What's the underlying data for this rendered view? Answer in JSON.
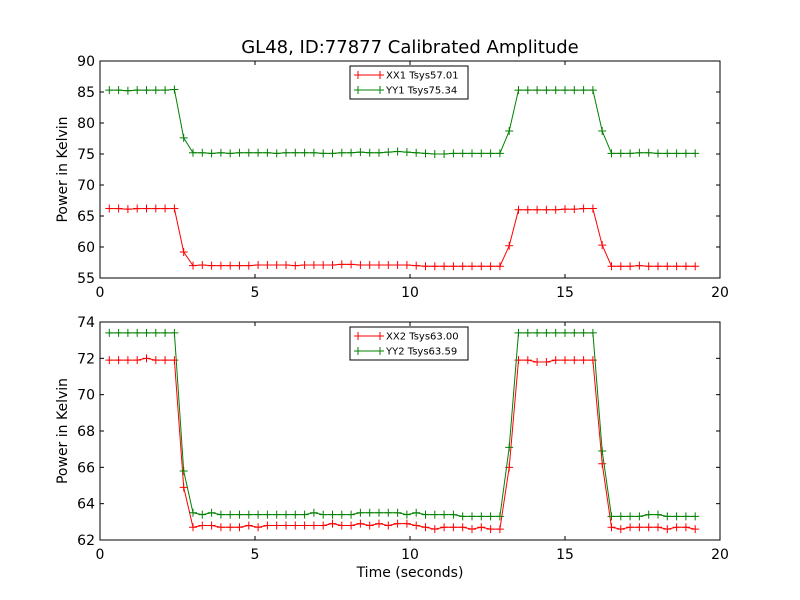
{
  "figure_title": "GL48, ID:77877 Calibrated Amplitude",
  "chart_data": [
    {
      "type": "line",
      "title": "GL48, ID:77877 Calibrated Amplitude",
      "xlabel": "",
      "ylabel": "Power in Kelvin",
      "xlim": [
        0,
        20
      ],
      "ylim": [
        55,
        90
      ],
      "xticks": [
        "0",
        "5",
        "10",
        "15",
        "20"
      ],
      "yticks": [
        "55",
        "60",
        "65",
        "70",
        "75",
        "80",
        "85",
        "90"
      ],
      "grid": false,
      "legend_position": "top-center",
      "x": [
        0.3,
        0.6,
        0.9,
        1.2,
        1.5,
        1.8,
        2.1,
        2.4,
        2.7,
        3.0,
        3.3,
        3.6,
        3.9,
        4.2,
        4.5,
        4.8,
        5.1,
        5.4,
        5.7,
        6.0,
        6.3,
        6.6,
        6.9,
        7.2,
        7.5,
        7.8,
        8.1,
        8.4,
        8.7,
        9.0,
        9.3,
        9.6,
        9.9,
        10.2,
        10.5,
        10.8,
        11.1,
        11.4,
        11.7,
        12.0,
        12.3,
        12.6,
        12.9,
        13.2,
        13.5,
        13.8,
        14.1,
        14.4,
        14.7,
        15.0,
        15.3,
        15.6,
        15.9,
        16.2,
        16.5,
        16.8,
        17.1,
        17.4,
        17.7,
        18.0,
        18.3,
        18.6,
        18.9,
        19.2
      ],
      "series": [
        {
          "name": "XX1 Tsys57.01",
          "color": "#ff0000",
          "values": [
            66.2,
            66.2,
            66.1,
            66.2,
            66.2,
            66.2,
            66.2,
            66.2,
            59.2,
            57.0,
            57.1,
            57.0,
            57.0,
            57.0,
            57.0,
            57.0,
            57.1,
            57.1,
            57.1,
            57.1,
            57.0,
            57.1,
            57.1,
            57.1,
            57.1,
            57.2,
            57.2,
            57.1,
            57.1,
            57.1,
            57.1,
            57.1,
            57.1,
            57.0,
            56.9,
            56.9,
            56.9,
            56.9,
            56.9,
            56.9,
            56.9,
            56.9,
            56.9,
            60.2,
            66.0,
            66.0,
            66.0,
            66.0,
            66.0,
            66.1,
            66.1,
            66.2,
            66.2,
            60.3,
            56.9,
            56.9,
            56.9,
            57.0,
            56.9,
            56.9,
            56.9,
            56.9,
            56.9,
            56.9
          ]
        },
        {
          "name": "YY1 Tsys75.34",
          "color": "#008000",
          "values": [
            85.3,
            85.3,
            85.2,
            85.3,
            85.3,
            85.3,
            85.3,
            85.4,
            77.6,
            75.2,
            75.2,
            75.1,
            75.2,
            75.1,
            75.2,
            75.2,
            75.2,
            75.2,
            75.1,
            75.2,
            75.2,
            75.2,
            75.2,
            75.1,
            75.1,
            75.2,
            75.2,
            75.3,
            75.2,
            75.2,
            75.3,
            75.4,
            75.3,
            75.2,
            75.1,
            75.0,
            75.0,
            75.1,
            75.1,
            75.1,
            75.1,
            75.1,
            75.1,
            78.7,
            85.3,
            85.3,
            85.3,
            85.3,
            85.3,
            85.3,
            85.3,
            85.3,
            85.3,
            78.7,
            75.1,
            75.1,
            75.1,
            75.2,
            75.2,
            75.1,
            75.1,
            75.1,
            75.1,
            75.1
          ]
        }
      ]
    },
    {
      "type": "line",
      "title": "",
      "xlabel": "Time (seconds)",
      "ylabel": "Power in Kelvin",
      "xlim": [
        0,
        20
      ],
      "ylim": [
        62,
        74
      ],
      "xticks": [
        "0",
        "5",
        "10",
        "15",
        "20"
      ],
      "yticks": [
        "62",
        "64",
        "66",
        "68",
        "70",
        "72",
        "74"
      ],
      "grid": false,
      "legend_position": "top-center",
      "x": [
        0.3,
        0.6,
        0.9,
        1.2,
        1.5,
        1.8,
        2.1,
        2.4,
        2.7,
        3.0,
        3.3,
        3.6,
        3.9,
        4.2,
        4.5,
        4.8,
        5.1,
        5.4,
        5.7,
        6.0,
        6.3,
        6.6,
        6.9,
        7.2,
        7.5,
        7.8,
        8.1,
        8.4,
        8.7,
        9.0,
        9.3,
        9.6,
        9.9,
        10.2,
        10.5,
        10.8,
        11.1,
        11.4,
        11.7,
        12.0,
        12.3,
        12.6,
        12.9,
        13.2,
        13.5,
        13.8,
        14.1,
        14.4,
        14.7,
        15.0,
        15.3,
        15.6,
        15.9,
        16.2,
        16.5,
        16.8,
        17.1,
        17.4,
        17.7,
        18.0,
        18.3,
        18.6,
        18.9,
        19.2
      ],
      "series": [
        {
          "name": "XX2 Tsys63.00",
          "color": "#ff0000",
          "values": [
            71.9,
            71.9,
            71.9,
            71.9,
            72.0,
            71.9,
            71.9,
            71.9,
            64.9,
            62.7,
            62.8,
            62.8,
            62.7,
            62.7,
            62.7,
            62.8,
            62.7,
            62.8,
            62.8,
            62.8,
            62.8,
            62.8,
            62.8,
            62.8,
            62.9,
            62.8,
            62.8,
            62.9,
            62.8,
            62.9,
            62.8,
            62.9,
            62.9,
            62.8,
            62.7,
            62.6,
            62.7,
            62.7,
            62.7,
            62.6,
            62.7,
            62.6,
            62.6,
            66.0,
            71.9,
            71.9,
            71.8,
            71.8,
            71.9,
            71.9,
            71.9,
            71.9,
            71.9,
            66.2,
            62.7,
            62.6,
            62.7,
            62.7,
            62.7,
            62.7,
            62.6,
            62.7,
            62.7,
            62.6
          ]
        },
        {
          "name": "YY2 Tsys63.59",
          "color": "#008000",
          "values": [
            73.4,
            73.4,
            73.4,
            73.4,
            73.4,
            73.4,
            73.4,
            73.4,
            65.8,
            63.5,
            63.4,
            63.5,
            63.4,
            63.4,
            63.4,
            63.4,
            63.4,
            63.4,
            63.4,
            63.4,
            63.4,
            63.4,
            63.5,
            63.4,
            63.4,
            63.4,
            63.4,
            63.5,
            63.5,
            63.5,
            63.5,
            63.5,
            63.4,
            63.5,
            63.4,
            63.4,
            63.4,
            63.4,
            63.3,
            63.3,
            63.3,
            63.3,
            63.3,
            67.1,
            73.4,
            73.4,
            73.4,
            73.4,
            73.4,
            73.4,
            73.4,
            73.4,
            73.4,
            66.9,
            63.3,
            63.3,
            63.3,
            63.3,
            63.4,
            63.4,
            63.3,
            63.3,
            63.3,
            63.3
          ]
        }
      ]
    }
  ]
}
